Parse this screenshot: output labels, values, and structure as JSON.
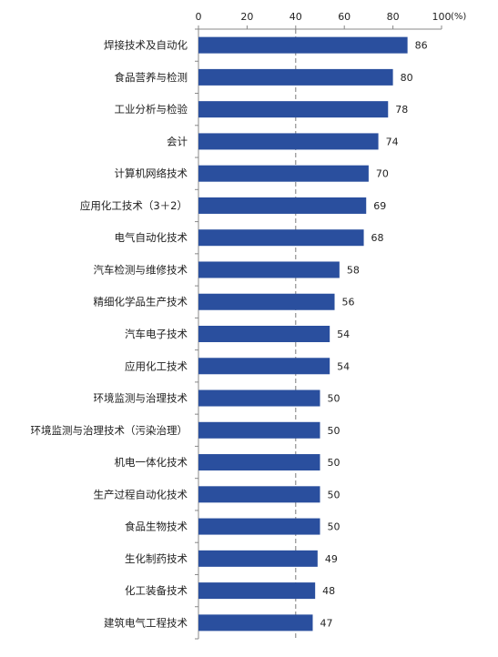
{
  "chart_data": {
    "type": "bar",
    "orientation": "horizontal",
    "title": "",
    "xlabel": "",
    "ylabel": "",
    "unit": "(%)",
    "xlim": [
      0,
      100
    ],
    "xticks": [
      0,
      20,
      40,
      60,
      80,
      100
    ],
    "categories": [
      "焊接技术及自动化",
      "食品营养与检测",
      "工业分析与检验",
      "会计",
      "计算机网络技术",
      "应用化工技术（3＋2）",
      "电气自动化技术",
      "汽车检测与维修技术",
      "精细化学品生产技术",
      "汽车电子技术",
      "应用化工技术",
      "环境监测与治理技术",
      "环境监测与治理技术（污染治理）",
      "机电一体化技术",
      "生产过程自动化技术",
      "食品生物技术",
      "生化制药技术",
      "化工装备技术",
      "建筑电气工程技术"
    ],
    "values": [
      86,
      80,
      78,
      74,
      70,
      69,
      68,
      58,
      56,
      54,
      54,
      50,
      50,
      50,
      50,
      50,
      49,
      48,
      47
    ],
    "bar_color": "#2a4f9e",
    "reference_line": 40,
    "grid": false,
    "legend": "none"
  }
}
